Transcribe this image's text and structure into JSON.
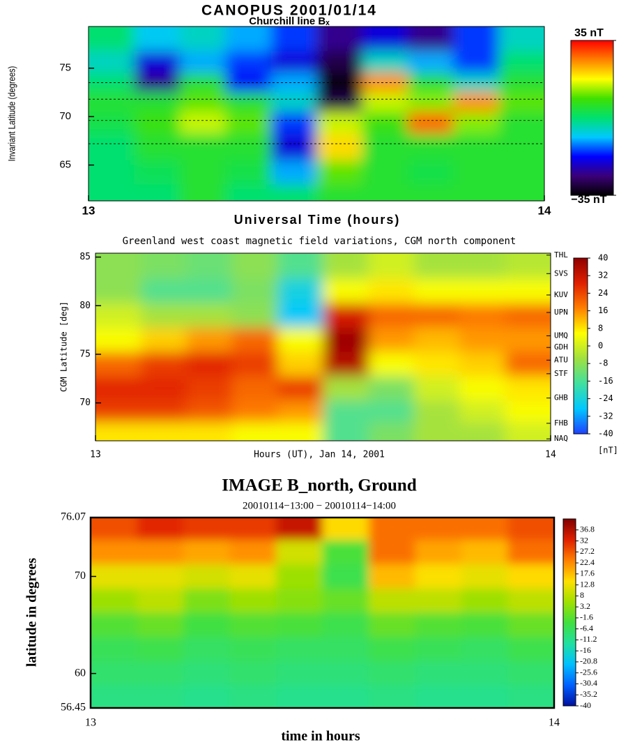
{
  "chart_data": [
    {
      "type": "heatmap",
      "title": "CANOPUS  2001/01/14",
      "subtitle": "Churchill line Bₓ",
      "xlabel": "Universal Time (hours)",
      "ylabel": "Invariant Latitude (degrees)",
      "xlim": [
        13,
        14
      ],
      "xticks": [
        13,
        14
      ],
      "ylim": [
        61.3,
        79.3
      ],
      "yticks": [
        65,
        70,
        75
      ],
      "station_lines": [
        79.3,
        73.5,
        71.8,
        69.6,
        67.2
      ],
      "x": [
        13.05,
        13.15,
        13.25,
        13.35,
        13.45,
        13.55,
        13.65,
        13.75,
        13.85,
        13.95
      ],
      "y": [
        78,
        75.5,
        73.5,
        71.5,
        69.5,
        67,
        64,
        62
      ],
      "z": [
        [
          0,
          -8,
          -5,
          -10,
          -15,
          -25,
          -20,
          -25,
          -15,
          -5
        ],
        [
          -5,
          -20,
          -10,
          -15,
          -20,
          -30,
          -5,
          -10,
          -15,
          0
        ],
        [
          0,
          -25,
          5,
          -18,
          -10,
          -35,
          25,
          5,
          -5,
          5
        ],
        [
          5,
          5,
          10,
          5,
          -5,
          -30,
          15,
          12,
          25,
          10
        ],
        [
          3,
          8,
          15,
          10,
          -15,
          15,
          8,
          28,
          12,
          5
        ],
        [
          0,
          5,
          5,
          5,
          -20,
          20,
          5,
          5,
          5,
          5
        ],
        [
          0,
          2,
          5,
          3,
          -10,
          10,
          5,
          3,
          5,
          5
        ],
        [
          0,
          0,
          5,
          0,
          0,
          5,
          5,
          5,
          5,
          5
        ]
      ],
      "colormap": [
        "#000000",
        "#3b007a",
        "#0000ff",
        "#00c8ff",
        "#00e070",
        "#40e000",
        "#ffff00",
        "#ff8000",
        "#ff0000"
      ],
      "clim": [
        -35,
        35
      ],
      "cticks": [
        {
          "value": 35,
          "label": "35 nT"
        },
        {
          "value": -35,
          "label": "−35 nT"
        }
      ]
    },
    {
      "type": "heatmap",
      "title": "Greenland west coast magnetic field variations, CGM north component",
      "xlabel": "Hours (UT), Jan 14, 2001",
      "ylabel": "CGM Latitude [deg]",
      "xlim": [
        13,
        14
      ],
      "xticks": [
        13,
        14
      ],
      "ylim": [
        66.1,
        85.4
      ],
      "yticks": [
        70,
        75,
        80,
        85
      ],
      "y2ticks": [
        {
          "value": 85.2,
          "label": "THL"
        },
        {
          "value": 83.3,
          "label": "SVS"
        },
        {
          "value": 81.1,
          "label": "KUV"
        },
        {
          "value": 79.3,
          "label": "UPN"
        },
        {
          "value": 76.9,
          "label": "UMQ"
        },
        {
          "value": 75.7,
          "label": "GDH"
        },
        {
          "value": 74.4,
          "label": "ATU"
        },
        {
          "value": 73.0,
          "label": "STF"
        },
        {
          "value": 70.5,
          "label": "GHB"
        },
        {
          "value": 67.9,
          "label": "FHB"
        },
        {
          "value": 66.3,
          "label": "NAQ"
        }
      ],
      "x": [
        13.05,
        13.15,
        13.25,
        13.35,
        13.45,
        13.55,
        13.65,
        13.75,
        13.85,
        13.95
      ],
      "y": [
        84,
        81.5,
        79,
        76.5,
        74,
        71.5,
        69,
        67
      ],
      "z": [
        [
          -8,
          -10,
          -12,
          -8,
          -15,
          -5,
          0,
          -5,
          -5,
          -3
        ],
        [
          -8,
          -15,
          -15,
          -10,
          -25,
          5,
          8,
          5,
          5,
          5
        ],
        [
          0,
          -5,
          -5,
          -8,
          -28,
          30,
          20,
          20,
          18,
          20
        ],
        [
          5,
          10,
          15,
          20,
          5,
          38,
          15,
          12,
          15,
          15
        ],
        [
          20,
          25,
          28,
          25,
          10,
          35,
          5,
          8,
          10,
          20
        ],
        [
          28,
          28,
          25,
          20,
          25,
          -5,
          -10,
          0,
          5,
          8
        ],
        [
          25,
          25,
          22,
          18,
          15,
          -15,
          -15,
          -5,
          0,
          5
        ],
        [
          8,
          8,
          8,
          5,
          5,
          -15,
          -10,
          -5,
          -5,
          0
        ]
      ],
      "colormap": [
        "#1e40ff",
        "#00c8ff",
        "#40e0a0",
        "#a0e040",
        "#ffff00",
        "#ff8000",
        "#e02000",
        "#900000"
      ],
      "clim": [
        -40,
        40
      ],
      "cticks": [
        40,
        32,
        24,
        16,
        8,
        0,
        -8,
        -16,
        -24,
        -32,
        -40
      ],
      "clabel": "[nT]"
    },
    {
      "type": "heatmap",
      "title": "IMAGE B_north, Ground",
      "subtitle": "20010114−13:00 − 20010114−14:00",
      "xlabel": "time in hours",
      "ylabel": "latitude in degrees",
      "xlim": [
        13,
        14
      ],
      "xticks": [
        13,
        14
      ],
      "ylim": [
        56.45,
        76.07
      ],
      "yticks": [
        56.45,
        60,
        70,
        76.07
      ],
      "x": [
        13.05,
        13.15,
        13.25,
        13.35,
        13.45,
        13.55,
        13.65,
        13.75,
        13.85,
        13.95
      ],
      "y": [
        75,
        72.5,
        70,
        67.5,
        65,
        62.5,
        60,
        57.5
      ],
      "z": [
        [
          28,
          32,
          30,
          30,
          35,
          15,
          25,
          25,
          25,
          28
        ],
        [
          22,
          22,
          20,
          22,
          10,
          -3,
          25,
          20,
          18,
          25
        ],
        [
          12,
          12,
          10,
          12,
          5,
          -5,
          18,
          14,
          12,
          15
        ],
        [
          5,
          8,
          2,
          5,
          3,
          0,
          8,
          8,
          5,
          8
        ],
        [
          -2,
          0,
          -4,
          -2,
          -3,
          -5,
          0,
          -2,
          -3,
          0
        ],
        [
          -6,
          -5,
          -7,
          -6,
          -7,
          -7,
          -5,
          -6,
          -7,
          -5
        ],
        [
          -8,
          -8,
          -9,
          -8,
          -9,
          -9,
          -8,
          -9,
          -9,
          -8
        ],
        [
          -10,
          -10,
          -11,
          -10,
          -11,
          -11,
          -10,
          -11,
          -11,
          -10
        ]
      ],
      "colormap": [
        "#0010a0",
        "#0060ff",
        "#00c0ff",
        "#20e0a0",
        "#40e040",
        "#a0e000",
        "#ffe000",
        "#ff8000",
        "#e02000",
        "#800000"
      ],
      "clim": [
        -40,
        41.6
      ],
      "cticks": [
        36.8,
        32,
        27.2,
        22.4,
        17.6,
        12.8,
        8,
        3.2,
        -1.6,
        -6.4,
        -11.2,
        -16,
        -20.8,
        -25.6,
        -30.4,
        -35.2,
        -40
      ]
    }
  ]
}
